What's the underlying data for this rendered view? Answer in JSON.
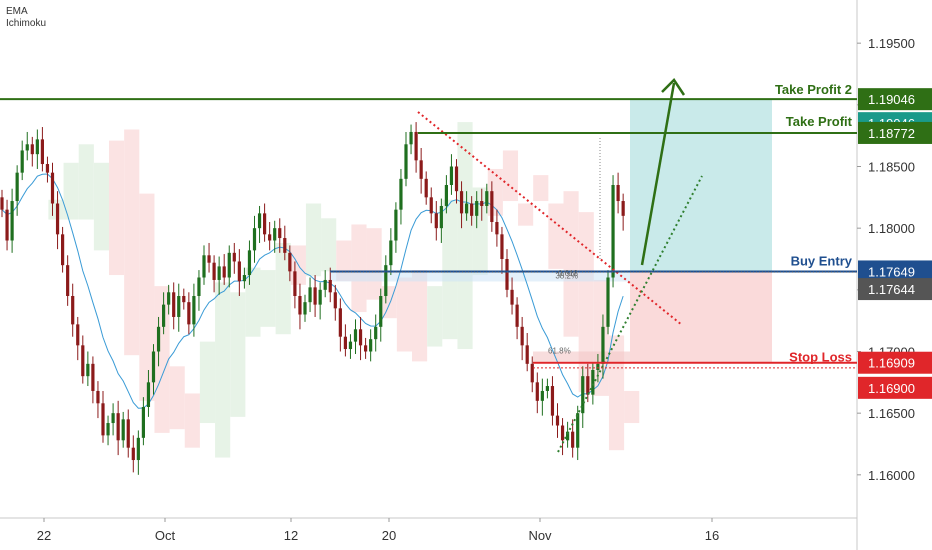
{
  "indicators": [
    "EMA",
    "Ichimoku"
  ],
  "colors": {
    "bull": "#1f6f1f",
    "bear": "#8b1a1a",
    "ema": "#3a9bd6",
    "profit_zone": "#bfe6e6",
    "loss_zone": "#f9d6d6",
    "target_line": "#2f6f15",
    "entry_line": "#1f4f8f",
    "stop_line": "#e0262a",
    "trend_red": "#e0262a",
    "trend_green": "#2f7f2f",
    "cloud_green": "#e7f3e7",
    "cloud_red": "#fbe3e3",
    "axis_text": "#333333"
  },
  "annotations": {
    "take_profit_2": "Take Profit 2",
    "take_profit": "Take Profit",
    "buy_entry": "Buy Entry",
    "stop_loss": "Stop Loss",
    "fib_382": "38.2%",
    "fib_618": "0.618",
    "fib_618b": "61.8%"
  },
  "chart_data": {
    "type": "candlestick",
    "x_ticks": [
      "22",
      "Oct",
      "12",
      "20",
      "Nov",
      "16"
    ],
    "y_ticks": [
      "1.19500",
      "1.19000",
      "1.18500",
      "1.18000",
      "1.17500",
      "1.17000",
      "1.16500",
      "1.16000"
    ],
    "y_tick_values": [
      1.195,
      1.19,
      1.185,
      1.18,
      1.175,
      1.17,
      1.165,
      1.16
    ],
    "ylim": [
      1.1565,
      1.1985
    ],
    "price_labels": [
      {
        "label": "1.19046",
        "value": 1.19046,
        "color": "#2f6f15"
      },
      {
        "label": "1.19046",
        "value": 1.19046,
        "color": "#1a9a8a"
      },
      {
        "label": "1.18772",
        "value": 1.18772,
        "color": "#2f6f15"
      },
      {
        "label": "1.17649",
        "value": 1.17649,
        "color": "#1f4f8f"
      },
      {
        "label": "1.17644",
        "value": 1.17644,
        "color": "#555555"
      },
      {
        "label": "1.16909",
        "value": 1.16909,
        "color": "#e0262a"
      },
      {
        "label": "1.16900",
        "value": 1.169,
        "color": "#e0262a"
      }
    ],
    "levels": {
      "take_profit_2": 1.19046,
      "take_profit": 1.18772,
      "buy_entry": 1.17649,
      "stop_loss": 1.16909
    },
    "closes": [
      1.1815,
      1.179,
      1.1822,
      1.1845,
      1.1863,
      1.1868,
      1.186,
      1.1872,
      1.1852,
      1.1845,
      1.182,
      1.1795,
      1.177,
      1.1745,
      1.1722,
      1.1705,
      1.168,
      1.169,
      1.1668,
      1.1658,
      1.1632,
      1.1642,
      1.165,
      1.1628,
      1.1645,
      1.1622,
      1.1612,
      1.163,
      1.1655,
      1.1675,
      1.17,
      1.172,
      1.1738,
      1.1748,
      1.1728,
      1.1745,
      1.174,
      1.1722,
      1.1745,
      1.176,
      1.1778,
      1.1772,
      1.1758,
      1.1769,
      1.176,
      1.178,
      1.1773,
      1.1757,
      1.1762,
      1.1782,
      1.18,
      1.1812,
      1.1795,
      1.179,
      1.18,
      1.1792,
      1.178,
      1.1765,
      1.1745,
      1.173,
      1.174,
      1.1752,
      1.1738,
      1.175,
      1.1758,
      1.1748,
      1.1735,
      1.1712,
      1.1702,
      1.1708,
      1.1718,
      1.1705,
      1.17,
      1.171,
      1.172,
      1.1745,
      1.177,
      1.179,
      1.1815,
      1.184,
      1.1868,
      1.1878,
      1.1855,
      1.184,
      1.1825,
      1.1812,
      1.18,
      1.1818,
      1.1835,
      1.185,
      1.183,
      1.1812,
      1.182,
      1.181,
      1.1822,
      1.1818,
      1.183,
      1.1805,
      1.1795,
      1.1775,
      1.175,
      1.1738,
      1.172,
      1.1705,
      1.169,
      1.1675,
      1.166,
      1.1668,
      1.1672,
      1.1648,
      1.164,
      1.1628,
      1.1635,
      1.1622,
      1.165,
      1.168,
      1.1665,
      1.1685,
      1.169,
      1.172,
      1.176,
      1.1835,
      1.1822,
      1.181
    ]
  }
}
